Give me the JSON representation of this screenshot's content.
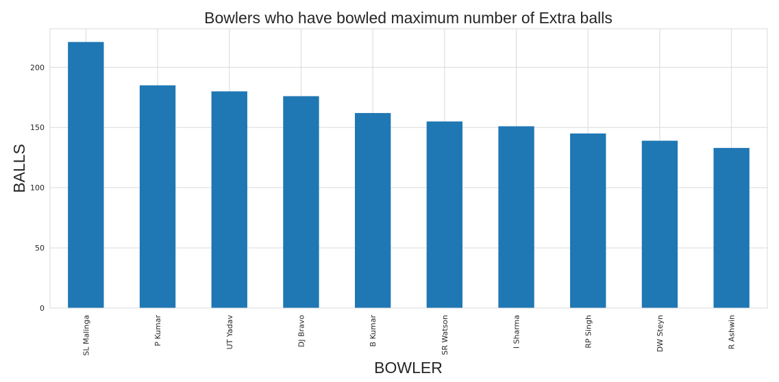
{
  "chart_data": {
    "type": "bar",
    "title": "Bowlers who have bowled maximum number of Extra balls",
    "xlabel": "BOWLER",
    "ylabel": "BALLS",
    "categories": [
      "SL Malinga",
      "P Kumar",
      "UT Yadav",
      "DJ Bravo",
      "B Kumar",
      "SR Watson",
      "I Sharma",
      "RP Singh",
      "DW Steyn",
      "R Ashwin"
    ],
    "values": [
      221,
      185,
      180,
      176,
      162,
      155,
      151,
      145,
      139,
      133
    ],
    "yticks": [
      0,
      50,
      100,
      150,
      200
    ],
    "ylim": [
      0,
      232
    ],
    "grid": true,
    "bar_color": "#1f77b4"
  }
}
